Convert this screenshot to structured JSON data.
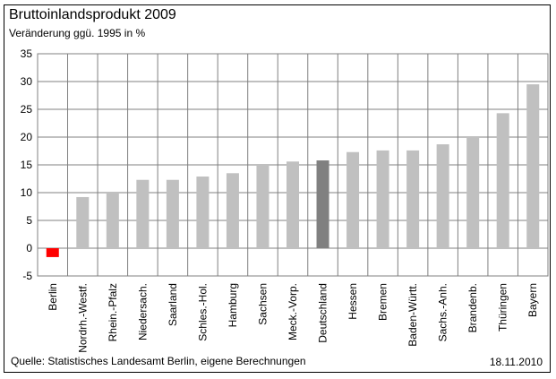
{
  "chart_data": {
    "type": "bar",
    "title": "Bruttoinlandsprodukt 2009",
    "subtitle": "Veränderung ggü. 1995 in %",
    "categories": [
      "Berlin",
      "Nordrh.-Westf.",
      "Rhein.-Pfalz",
      "Niedersach.",
      "Saarland",
      "Schles.-Hol.",
      "Hamburg",
      "Sachsen",
      "Meck.-Vorp.",
      "Deutschland",
      "Hessen",
      "Bremen",
      "Baden-Württ.",
      "Sachs.-Anh.",
      "Brandenb.",
      "Thüringen",
      "Bayern"
    ],
    "values": [
      -1.6,
      9.2,
      10.0,
      12.3,
      12.3,
      12.9,
      13.5,
      15.0,
      15.6,
      15.8,
      17.3,
      17.6,
      17.6,
      18.7,
      20.0,
      24.3,
      29.5
    ],
    "ylim": [
      -5,
      35
    ],
    "yticks": [
      -5,
      0,
      5,
      10,
      15,
      20,
      25,
      30,
      35
    ],
    "grid": true,
    "colors": {
      "default": "#c0c0c0",
      "Berlin": "#ff0000",
      "Deutschland": "#808080"
    }
  },
  "footer": {
    "source": "Quelle: Statistisches Landesamt Berlin, eigene Berechnungen",
    "date": "18.11.2010"
  }
}
